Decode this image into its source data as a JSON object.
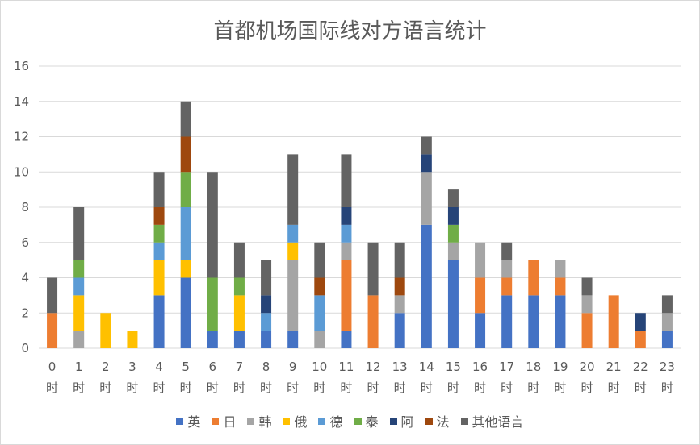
{
  "chart_data": {
    "type": "bar",
    "stacked": true,
    "title": "首都机场国际线对方语言统计",
    "xlabel": "",
    "ylabel": "",
    "ylim": [
      0,
      16
    ],
    "yticks": [
      0,
      2,
      4,
      6,
      8,
      10,
      12,
      14,
      16
    ],
    "grid": true,
    "legend_position": "bottom",
    "categories": [
      "0",
      "1",
      "2",
      "3",
      "4",
      "5",
      "6",
      "7",
      "8",
      "9",
      "10",
      "11",
      "12",
      "13",
      "14",
      "15",
      "16",
      "17",
      "18",
      "19",
      "20",
      "21",
      "22",
      "23"
    ],
    "category_suffix": "时",
    "series": [
      {
        "name": "英",
        "color": "#4472c4",
        "values": [
          0,
          0,
          0,
          0,
          3,
          4,
          1,
          1,
          1,
          1,
          0,
          1,
          0,
          2,
          7,
          5,
          2,
          3,
          3,
          3,
          0,
          0,
          0,
          1
        ]
      },
      {
        "name": "日",
        "color": "#ed7d31",
        "values": [
          2,
          0,
          0,
          0,
          0,
          0,
          0,
          0,
          0,
          0,
          0,
          4,
          3,
          0,
          0,
          0,
          2,
          1,
          2,
          1,
          2,
          3,
          1,
          0
        ]
      },
      {
        "name": "韩",
        "color": "#a5a5a5",
        "values": [
          0,
          1,
          0,
          0,
          0,
          0,
          0,
          0,
          0,
          4,
          1,
          1,
          0,
          1,
          3,
          1,
          2,
          1,
          0,
          1,
          1,
          0,
          0,
          1
        ]
      },
      {
        "name": "俄",
        "color": "#ffc000",
        "values": [
          0,
          2,
          2,
          1,
          2,
          1,
          0,
          2,
          0,
          1,
          0,
          0,
          0,
          0,
          0,
          0,
          0,
          0,
          0,
          0,
          0,
          0,
          0,
          0
        ]
      },
      {
        "name": "德",
        "color": "#5b9bd5",
        "values": [
          0,
          1,
          0,
          0,
          1,
          3,
          0,
          0,
          1,
          1,
          2,
          1,
          0,
          0,
          0,
          0,
          0,
          0,
          0,
          0,
          0,
          0,
          0,
          0
        ]
      },
      {
        "name": "泰",
        "color": "#70ad47",
        "values": [
          0,
          1,
          0,
          0,
          1,
          2,
          3,
          1,
          0,
          0,
          0,
          0,
          0,
          0,
          0,
          1,
          0,
          0,
          0,
          0,
          0,
          0,
          0,
          0
        ]
      },
      {
        "name": "阿",
        "color": "#264478",
        "values": [
          0,
          0,
          0,
          0,
          0,
          0,
          0,
          0,
          1,
          0,
          0,
          1,
          0,
          0,
          1,
          1,
          0,
          0,
          0,
          0,
          0,
          0,
          1,
          0
        ]
      },
      {
        "name": "法",
        "color": "#9e480e",
        "values": [
          0,
          0,
          0,
          0,
          1,
          2,
          0,
          0,
          0,
          0,
          1,
          0,
          0,
          1,
          0,
          0,
          0,
          0,
          0,
          0,
          0,
          0,
          0,
          0
        ]
      },
      {
        "name": "其他语言",
        "color": "#636363",
        "values": [
          2,
          3,
          0,
          0,
          2,
          2,
          6,
          2,
          2,
          4,
          2,
          3,
          3,
          2,
          1,
          1,
          0,
          1,
          0,
          0,
          1,
          0,
          0,
          1
        ]
      }
    ]
  }
}
